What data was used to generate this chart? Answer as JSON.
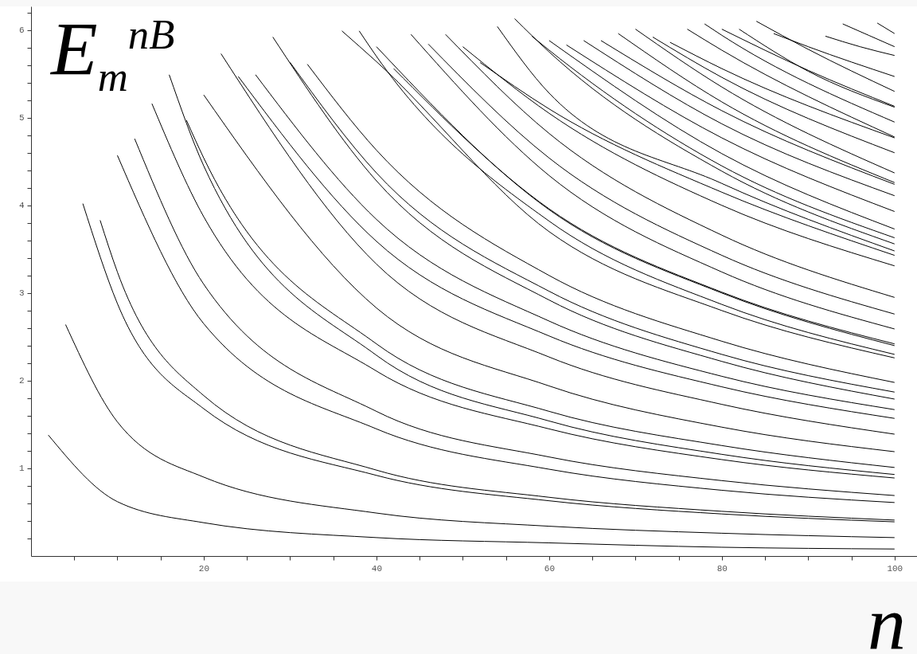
{
  "chart_data": {
    "type": "line",
    "xlabel": "n",
    "ylabel": "E$_{m}$$^{nB}$",
    "xlim": [
      0,
      102.6
    ],
    "ylim": [
      0,
      6.27
    ],
    "xticks": [
      {
        "value": 5,
        "label": null
      },
      {
        "value": 10,
        "label": null
      },
      {
        "value": 15,
        "label": null
      },
      20,
      {
        "value": 25,
        "label": null
      },
      {
        "value": 30,
        "label": null
      },
      {
        "value": 35,
        "label": null
      },
      40,
      {
        "value": 45,
        "label": null
      },
      {
        "value": 50,
        "label": null
      },
      {
        "value": 55,
        "label": null
      },
      60,
      {
        "value": 65,
        "label": null
      },
      {
        "value": 70,
        "label": null
      },
      {
        "value": 75,
        "label": null
      },
      80,
      {
        "value": 85,
        "label": null
      },
      {
        "value": 90,
        "label": null
      },
      {
        "value": 95,
        "label": null
      },
      100
    ],
    "yticks": [
      {
        "value": 0.2,
        "label": null
      },
      {
        "value": 0.4,
        "label": null
      },
      {
        "value": 0.6,
        "label": null
      },
      {
        "value": 0.8,
        "label": null
      },
      1,
      {
        "value": 1.2,
        "label": null
      },
      {
        "value": 1.4,
        "label": null
      },
      {
        "value": 1.6,
        "label": null
      },
      {
        "value": 1.8,
        "label": null
      },
      2,
      {
        "value": 2.2,
        "label": null
      },
      {
        "value": 2.4,
        "label": null
      },
      {
        "value": 2.6,
        "label": null
      },
      {
        "value": 2.8,
        "label": null
      },
      3,
      {
        "value": 3.2,
        "label": null
      },
      {
        "value": 3.4,
        "label": null
      },
      {
        "value": 3.6,
        "label": null
      },
      {
        "value": 3.8,
        "label": null
      },
      4,
      {
        "value": 4.2,
        "label": null
      },
      {
        "value": 4.4,
        "label": null
      },
      {
        "value": 4.6,
        "label": null
      },
      {
        "value": 4.8,
        "label": null
      },
      5,
      {
        "value": 5.2,
        "label": null
      },
      {
        "value": 5.4,
        "label": null
      },
      {
        "value": 5.6,
        "label": null
      },
      {
        "value": 5.8,
        "label": null
      },
      6,
      {
        "value": 6.2,
        "label": null
      }
    ],
    "series": [
      {
        "color": "#000000",
        "x": [
          2,
          10,
          20,
          40,
          60,
          80,
          100
        ],
        "values": [
          1.38,
          0.62,
          0.38,
          0.21,
          0.15,
          0.1,
          0.08
        ]
      },
      {
        "color": "#000000",
        "x": [
          4,
          10,
          20,
          40,
          60,
          80,
          100
        ],
        "values": [
          2.64,
          1.53,
          0.9,
          0.49,
          0.34,
          0.26,
          0.21
        ]
      },
      {
        "color": "#000000",
        "x": [
          6,
          10,
          20,
          40,
          60,
          80,
          100
        ],
        "values": [
          4.02,
          2.88,
          1.68,
          0.92,
          0.63,
          0.48,
          0.39
        ]
      },
      {
        "color": "#000000",
        "x": [
          8,
          10,
          20,
          40,
          60,
          80,
          100
        ],
        "values": [
          3.83,
          3.24,
          1.83,
          0.98,
          0.67,
          0.51,
          0.41
        ]
      },
      {
        "color": "#000000",
        "x": [
          10,
          20,
          40,
          60,
          80,
          100
        ],
        "values": [
          4.57,
          2.65,
          1.45,
          0.99,
          0.75,
          0.61
        ]
      },
      {
        "color": "#000000",
        "x": [
          12,
          20,
          40,
          60,
          80,
          100
        ],
        "values": [
          4.76,
          3.1,
          1.65,
          1.13,
          0.86,
          0.69
        ]
      },
      {
        "color": "#000000",
        "x": [
          14,
          20,
          40,
          60,
          80,
          100
        ],
        "values": [
          5.16,
          3.87,
          2.11,
          1.45,
          1.1,
          0.89
        ]
      },
      {
        "color": "#000000",
        "x": [
          16,
          20,
          40,
          60,
          80,
          100
        ],
        "values": [
          5.49,
          4.45,
          2.29,
          1.54,
          1.16,
          0.93
        ]
      },
      {
        "color": "#000000",
        "x": [
          18,
          20,
          40,
          60,
          80,
          100
        ],
        "values": [
          4.97,
          4.54,
          2.42,
          1.65,
          1.26,
          1.01
        ]
      },
      {
        "color": "#000000",
        "x": [
          20,
          40,
          60,
          80,
          100
        ],
        "values": [
          5.26,
          2.83,
          1.94,
          1.47,
          1.19
        ]
      },
      {
        "color": "#000000",
        "x": [
          22,
          40,
          60,
          80,
          100
        ],
        "values": [
          5.73,
          3.33,
          2.27,
          1.73,
          1.39
        ]
      },
      {
        "color": "#000000",
        "x": [
          24,
          40,
          60,
          80,
          100
        ],
        "values": [
          5.47,
          3.59,
          2.51,
          1.93,
          1.57
        ]
      },
      {
        "color": "#000000",
        "x": [
          26,
          40,
          60,
          80,
          100
        ],
        "values": [
          5.49,
          3.84,
          2.68,
          2.05,
          1.67
        ]
      },
      {
        "color": "#000000",
        "x": [
          28,
          40,
          60,
          80,
          100
        ],
        "values": [
          5.92,
          4.28,
          2.92,
          2.22,
          1.79
        ]
      },
      {
        "color": "#000000",
        "x": [
          30,
          40,
          60,
          80,
          100
        ],
        "values": [
          5.63,
          4.37,
          3.02,
          2.3,
          1.87
        ]
      },
      {
        "color": "#000000",
        "x": [
          32,
          40,
          60,
          80,
          100
        ],
        "values": [
          5.61,
          4.63,
          3.2,
          2.45,
          1.98
        ]
      },
      {
        "color": "#000000",
        "x": [
          36,
          40,
          60,
          80,
          100
        ],
        "values": [
          5.99,
          5.64,
          3.7,
          2.8,
          2.26
        ]
      },
      {
        "color": "#000000",
        "x": [
          38,
          40,
          60,
          80,
          100
        ],
        "values": [
          5.99,
          5.7,
          3.82,
          2.87,
          2.3
        ]
      },
      {
        "color": "#000000",
        "x": [
          40,
          60,
          80,
          100
        ],
        "values": [
          5.81,
          3.95,
          3.0,
          2.4
        ]
      },
      {
        "color": "#000000",
        "x": [
          42,
          60,
          80,
          100
        ],
        "values": [
          5.56,
          3.96,
          3.01,
          2.42
        ]
      },
      {
        "color": "#000000",
        "x": [
          44,
          60,
          80,
          100
        ],
        "values": [
          5.95,
          4.34,
          3.24,
          2.59
        ]
      },
      {
        "color": "#000000",
        "x": [
          46,
          60,
          80,
          100
        ],
        "values": [
          5.84,
          4.54,
          3.43,
          2.76
        ]
      },
      {
        "color": "#000000",
        "x": [
          48,
          60,
          80,
          100
        ],
        "values": [
          5.95,
          4.82,
          3.66,
          2.95
        ]
      },
      {
        "color": "#000000",
        "x": [
          50,
          60,
          80,
          100
        ],
        "values": [
          5.81,
          5.05,
          4.0,
          3.31
        ]
      },
      {
        "color": "#000000",
        "x": [
          52,
          60,
          80,
          100
        ],
        "values": [
          5.63,
          5.1,
          4.15,
          3.43
        ]
      },
      {
        "color": "#000000",
        "x": [
          54,
          60,
          80,
          100
        ],
        "values": [
          6.04,
          5.28,
          4.25,
          3.48
        ]
      },
      {
        "color": "#000000",
        "x": [
          56,
          60,
          80,
          100
        ],
        "values": [
          6.13,
          5.75,
          4.39,
          3.56
        ]
      },
      {
        "color": "#000000",
        "x": [
          58,
          60,
          80,
          100
        ],
        "values": [
          5.93,
          5.77,
          4.45,
          3.63
        ]
      },
      {
        "color": "#000000",
        "x": [
          60,
          80,
          100
        ],
        "values": [
          5.88,
          4.59,
          3.73
        ]
      },
      {
        "color": "#000000",
        "x": [
          62,
          80,
          100
        ],
        "values": [
          5.83,
          4.77,
          3.93
        ]
      },
      {
        "color": "#000000",
        "x": [
          64,
          80,
          100
        ],
        "values": [
          5.88,
          4.93,
          4.11
        ]
      },
      {
        "color": "#000000",
        "x": [
          66,
          80,
          100
        ],
        "values": [
          5.88,
          5.08,
          4.24
        ]
      },
      {
        "color": "#000000",
        "x": [
          68,
          80,
          100
        ],
        "values": [
          5.96,
          5.18,
          4.26
        ]
      },
      {
        "color": "#000000",
        "x": [
          70,
          80,
          100
        ],
        "values": [
          6.01,
          5.35,
          4.37
        ]
      },
      {
        "color": "#000000",
        "x": [
          72,
          80,
          100
        ],
        "values": [
          5.92,
          5.46,
          4.6
        ]
      },
      {
        "color": "#000000",
        "x": [
          74,
          80,
          100
        ],
        "values": [
          5.86,
          5.56,
          4.77
        ]
      },
      {
        "color": "#000000",
        "x": [
          76,
          80,
          100
        ],
        "values": [
          6.01,
          5.77,
          4.78
        ]
      },
      {
        "color": "#000000",
        "x": [
          78,
          80,
          100
        ],
        "values": [
          6.07,
          5.94,
          4.95
        ]
      },
      {
        "color": "#000000",
        "x": [
          80,
          90,
          100
        ],
        "values": [
          6.01,
          5.54,
          5.13
        ]
      },
      {
        "color": "#000000",
        "x": [
          82,
          90,
          100
        ],
        "values": [
          6.01,
          5.53,
          5.12
        ]
      },
      {
        "color": "#000000",
        "x": [
          84,
          90,
          100
        ],
        "values": [
          6.1,
          5.78,
          5.3
        ]
      },
      {
        "color": "#000000",
        "x": [
          86,
          90,
          100
        ],
        "values": [
          5.96,
          5.81,
          5.47
        ]
      },
      {
        "color": "#000000",
        "x": [
          92,
          96,
          100
        ],
        "values": [
          5.93,
          5.81,
          5.71
        ]
      },
      {
        "color": "#000000",
        "x": [
          94,
          97,
          100
        ],
        "values": [
          6.07,
          5.94,
          5.81
        ]
      },
      {
        "color": "#000000",
        "x": [
          98,
          100
        ],
        "values": [
          6.08,
          5.96
        ]
      }
    ]
  }
}
